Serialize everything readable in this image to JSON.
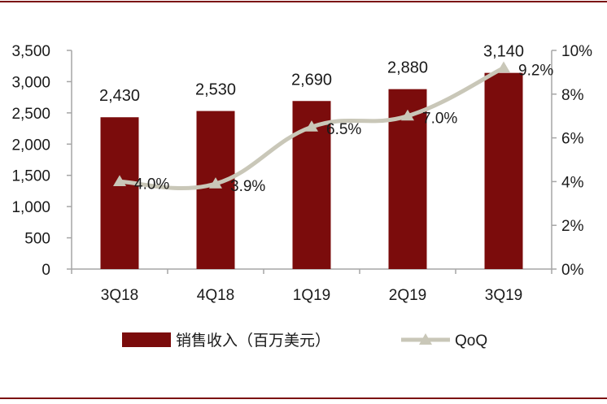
{
  "chart_data": {
    "type": "bar+line",
    "categories": [
      "3Q18",
      "4Q18",
      "1Q19",
      "2Q19",
      "3Q19"
    ],
    "series": [
      {
        "name": "销售收入（百万美元）",
        "type": "bar",
        "axis": "left",
        "values": [
          2430,
          2530,
          2690,
          2880,
          3140
        ],
        "labels": [
          "2,430",
          "2,530",
          "2,690",
          "2,880",
          "3,140"
        ],
        "color": "#7b0c0c"
      },
      {
        "name": "QoQ",
        "type": "line",
        "axis": "right",
        "values": [
          4.0,
          3.9,
          6.5,
          7.0,
          9.2
        ],
        "labels": [
          "4.0%",
          "3.9%",
          "6.5%",
          "7.0%",
          "9.2%"
        ],
        "color": "#c9c7b8"
      }
    ],
    "y_left": {
      "ylim": [
        0,
        3500
      ],
      "ticks": [
        0,
        500,
        1000,
        1500,
        2000,
        2500,
        3000,
        3500
      ],
      "tick_labels": [
        "0",
        "500",
        "1,000",
        "1,500",
        "2,000",
        "2,500",
        "3,000",
        "3,500"
      ]
    },
    "y_right": {
      "ylim": [
        0,
        10
      ],
      "ticks": [
        0,
        2,
        4,
        6,
        8,
        10
      ],
      "tick_labels": [
        "0%",
        "2%",
        "4%",
        "6%",
        "8%",
        "10%"
      ]
    },
    "grid": false,
    "legend_position": "bottom",
    "frame_color": "#7b0c0c"
  }
}
